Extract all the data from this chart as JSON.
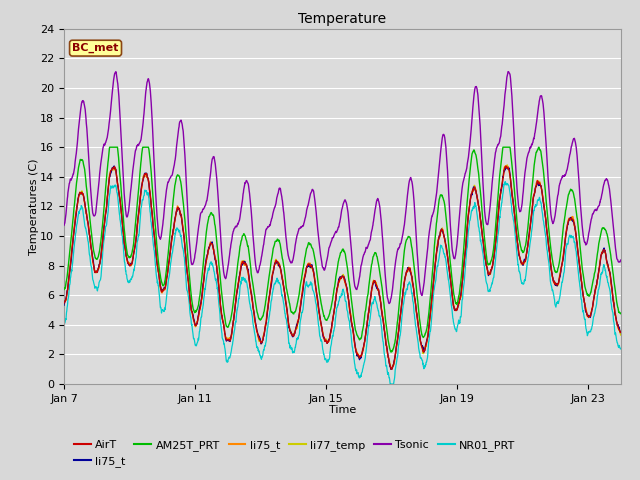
{
  "title": "Temperature",
  "xlabel": "Time",
  "ylabel": "Temperatures (C)",
  "ylim": [
    0,
    24
  ],
  "yticks": [
    0,
    2,
    4,
    6,
    8,
    10,
    12,
    14,
    16,
    18,
    20,
    22,
    24
  ],
  "xtick_labels": [
    "Jan 7",
    "Jan 11",
    "Jan 15",
    "Jan 19",
    "Jan 23"
  ],
  "xtick_pos": [
    0,
    4,
    8,
    12,
    16
  ],
  "xlim": [
    0,
    17
  ],
  "annotation": "BC_met",
  "fig_bg": "#d8d8d8",
  "ax_bg": "#dcdcdc",
  "grid_color": "#ffffff",
  "legend_entries": [
    {
      "label": "AirT",
      "color": "#cc0000"
    },
    {
      "label": "li75_t",
      "color": "#000099"
    },
    {
      "label": "AM25T_PRT",
      "color": "#00bb00"
    },
    {
      "label": "li75_t",
      "color": "#ff8800"
    },
    {
      "label": "li77_temp",
      "color": "#cccc00"
    },
    {
      "label": "Tsonic",
      "color": "#8800aa"
    },
    {
      "label": "NR01_PRT",
      "color": "#00cccc"
    }
  ]
}
